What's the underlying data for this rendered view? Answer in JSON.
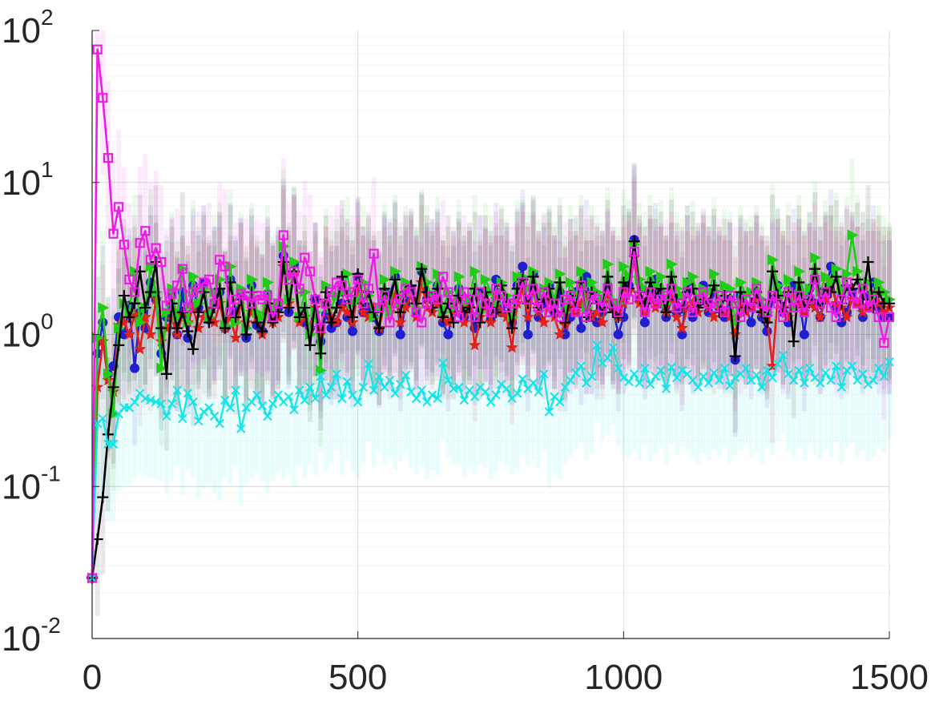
{
  "chart_data": {
    "type": "line",
    "title": "",
    "xlabel": "",
    "ylabel": "",
    "xlim": [
      0,
      1500
    ],
    "ylim": [
      0.01,
      100
    ],
    "y_scale": "log",
    "grid": true,
    "legend": "none",
    "x_ticks": [
      0,
      500,
      1000,
      1500
    ],
    "x_tick_labels": [
      "0",
      "500",
      "1000",
      "1500"
    ],
    "y_ticks": [
      0.01,
      0.1,
      1,
      10,
      100
    ],
    "y_tick_labels": [
      {
        "base": "10",
        "exp": "-2"
      },
      {
        "base": "10",
        "exp": "-1"
      },
      {
        "base": "10",
        "exp": "0"
      },
      {
        "base": "10",
        "exp": "1"
      },
      {
        "base": "10",
        "exp": "2"
      }
    ],
    "x": [
      0,
      10,
      20,
      30,
      40,
      50,
      60,
      70,
      80,
      90,
      100,
      110,
      120,
      130,
      140,
      150,
      160,
      170,
      180,
      190,
      200,
      210,
      220,
      230,
      240,
      250,
      260,
      270,
      280,
      290,
      300,
      310,
      320,
      330,
      340,
      350,
      360,
      370,
      380,
      390,
      400,
      410,
      420,
      430,
      440,
      450,
      460,
      470,
      480,
      490,
      500,
      510,
      520,
      530,
      540,
      550,
      560,
      570,
      580,
      590,
      600,
      610,
      620,
      630,
      640,
      650,
      660,
      670,
      680,
      690,
      700,
      710,
      720,
      730,
      740,
      750,
      760,
      770,
      780,
      790,
      800,
      810,
      820,
      830,
      840,
      850,
      860,
      870,
      880,
      890,
      900,
      910,
      920,
      930,
      940,
      950,
      960,
      970,
      980,
      990,
      1000,
      1010,
      1020,
      1030,
      1040,
      1050,
      1060,
      1070,
      1080,
      1090,
      1100,
      1110,
      1120,
      1130,
      1140,
      1150,
      1160,
      1170,
      1180,
      1190,
      1200,
      1210,
      1220,
      1230,
      1240,
      1250,
      1260,
      1270,
      1280,
      1290,
      1300,
      1310,
      1320,
      1330,
      1340,
      1350,
      1360,
      1370,
      1380,
      1390,
      1400,
      1410,
      1420,
      1430,
      1440,
      1450,
      1460,
      1470,
      1480,
      1490,
      1500
    ],
    "series": [
      {
        "color": "#1f1fcf",
        "marker": "circle",
        "values": [
          0.025,
          0.75,
          1.2,
          0.55,
          0.62,
          1.3,
          1.0,
          1.55,
          0.6,
          1.4,
          1.1,
          2.2,
          1.7,
          0.75,
          1.3,
          1.8,
          1.0,
          1.9,
          0.95,
          2.1,
          1.5,
          2.2,
          1.25,
          1.6,
          1.9,
          1.1,
          2.3,
          1.4,
          1.8,
          0.95,
          2.1,
          1.15,
          1.05,
          1.85,
          1.25,
          1.5,
          3.3,
          1.4,
          2.9,
          1.3,
          1.2,
          1.1,
          1.7,
          0.9,
          1.35,
          1.1,
          1.2,
          1.6,
          1.3,
          1.05,
          2.4,
          1.4,
          1.5,
          1.3,
          1.05,
          1.9,
          1.8,
          2.4,
          1.0,
          1.6,
          2.0,
          1.4,
          2.6,
          1.7,
          1.8,
          2.1,
          1.2,
          1.0,
          1.5,
          2.0,
          1.3,
          1.6,
          1.1,
          1.9,
          1.55,
          1.25,
          2.3,
          1.4,
          1.6,
          1.2,
          2.1,
          2.8,
          1.0,
          2.5,
          1.3,
          1.6,
          2.1,
          1.4,
          1.9,
          1.0,
          1.3,
          1.9,
          1.1,
          2.4,
          1.3,
          1.2,
          1.4,
          2.1,
          1.5,
          1.0,
          1.3,
          2.1,
          4.2,
          1.7,
          1.2,
          1.8,
          2.3,
          1.6,
          1.3,
          1.7,
          1.4,
          1.0,
          2.2,
          1.3,
          1.6,
          2.1,
          1.4,
          1.9,
          1.5,
          1.3,
          1.7,
          0.68,
          1.8,
          1.5,
          1.2,
          1.9,
          1.3,
          1.05,
          1.7,
          2.1,
          1.4,
          1.2,
          2.1,
          1.8,
          1.0,
          2.0,
          1.6,
          1.3,
          1.9,
          2.8,
          1.5,
          1.2,
          1.4,
          1.9,
          1.6,
          1.3,
          1.8,
          2.2,
          1.5,
          1.3,
          1.3
        ]
      },
      {
        "color": "#e0211c",
        "marker": "star",
        "values": [
          0.025,
          0.45,
          0.9,
          0.5,
          0.42,
          1.15,
          1.2,
          1.0,
          1.35,
          0.8,
          1.3,
          1.0,
          1.7,
          0.9,
          1.1,
          1.25,
          1.0,
          1.35,
          1.2,
          1.5,
          1.1,
          1.3,
          1.4,
          1.2,
          1.6,
          1.1,
          1.3,
          0.95,
          1.7,
          1.2,
          1.4,
          1.3,
          1.0,
          1.5,
          1.2,
          1.3,
          2.8,
          1.6,
          2.5,
          1.2,
          1.3,
          1.1,
          1.5,
          1.0,
          1.6,
          1.3,
          1.2,
          1.5,
          1.4,
          1.2,
          1.9,
          1.4,
          1.3,
          1.5,
          1.1,
          1.6,
          1.4,
          1.8,
          1.2,
          1.5,
          1.8,
          1.3,
          2.2,
          1.5,
          1.4,
          1.6,
          1.3,
          1.2,
          1.4,
          1.7,
          1.2,
          1.5,
          0.85,
          1.3,
          1.55,
          1.2,
          1.7,
          1.4,
          1.3,
          0.82,
          1.6,
          2.0,
          1.3,
          1.9,
          1.4,
          1.2,
          1.7,
          1.3,
          1.0,
          1.15,
          1.5,
          1.4,
          1.6,
          1.8,
          1.3,
          1.4,
          1.2,
          1.7,
          1.5,
          1.3,
          1.6,
          1.9,
          3.2,
          1.6,
          1.4,
          1.8,
          1.5,
          1.6,
          1.4,
          1.7,
          1.3,
          1.1,
          1.5,
          1.6,
          1.4,
          1.9,
          1.5,
          1.3,
          1.6,
          1.4,
          1.3,
          1.0,
          1.6,
          1.4,
          1.5,
          1.7,
          1.4,
          1.3,
          0.62,
          1.8,
          1.5,
          1.3,
          1.7,
          1.6,
          1.4,
          1.6,
          1.5,
          1.3,
          1.7,
          2.2,
          1.6,
          1.5,
          1.3,
          1.7,
          1.6,
          1.4,
          1.5,
          1.8,
          1.6,
          1.4,
          1.5
        ]
      },
      {
        "color": "#1fcc16",
        "marker": "triangle-right",
        "values": [
          0.025,
          0.95,
          1.5,
          0.55,
          0.3,
          1.1,
          1.6,
          1.4,
          2.6,
          1.2,
          1.5,
          2.8,
          1.9,
          0.6,
          1.4,
          2.0,
          1.3,
          2.7,
          1.2,
          2.4,
          1.6,
          2.0,
          1.3,
          1.9,
          2.3,
          1.15,
          2.8,
          1.2,
          2.0,
          1.1,
          2.3,
          1.4,
          1.3,
          2.2,
          1.4,
          1.6,
          3.8,
          1.7,
          3.0,
          1.3,
          1.9,
          1.0,
          1.4,
          0.58,
          2.1,
          1.5,
          1.8,
          1.9,
          2.5,
          1.6,
          1.7,
          2.2,
          1.8,
          1.3,
          1.5,
          2.3,
          1.4,
          2.6,
          1.6,
          2.2,
          1.9,
          1.5,
          2.8,
          2.2,
          1.7,
          2.5,
          1.4,
          1.9,
          1.5,
          2.4,
          1.6,
          1.7,
          2.6,
          1.4,
          2.3,
          1.9,
          1.6,
          2.2,
          1.8,
          1.3,
          2.4,
          2.4,
          2.0,
          2.6,
          1.8,
          2.0,
          2.2,
          1.7,
          2.5,
          1.4,
          2.2,
          1.8,
          2.6,
          1.5,
          2.2,
          1.9,
          1.7,
          2.9,
          1.6,
          1.6,
          2.8,
          2.4,
          3.9,
          2.3,
          2.0,
          2.6,
          2.1,
          2.4,
          1.6,
          2.9,
          2.0,
          1.8,
          2.2,
          2.4,
          1.7,
          2.0,
          1.9,
          2.5,
          1.6,
          2.1,
          2.0,
          1.2,
          2.2,
          1.8,
          1.9,
          2.2,
          1.7,
          1.4,
          3.1,
          2.1,
          1.8,
          2.3,
          1.5,
          2.6,
          1.8,
          2.0,
          3.2,
          1.9,
          2.4,
          2.2,
          2.7,
          1.9,
          2.5,
          4.5,
          2.6,
          2.0,
          2.2,
          1.8,
          2.2,
          1.9,
          1.7
        ]
      },
      {
        "color": "#000000",
        "marker": "plus",
        "values": [
          0.025,
          0.045,
          0.085,
          0.22,
          0.45,
          0.85,
          1.8,
          1.3,
          1.6,
          2.6,
          1.5,
          1.9,
          3.0,
          1.1,
          0.55,
          1.6,
          1.1,
          1.4,
          1.05,
          0.8,
          1.4,
          1.9,
          1.2,
          1.5,
          2.0,
          1.1,
          2.2,
          1.3,
          1.7,
          1.0,
          1.9,
          1.2,
          1.05,
          1.6,
          1.2,
          1.4,
          3.0,
          1.5,
          2.6,
          1.3,
          1.5,
          0.85,
          1.7,
          0.75,
          1.9,
          1.2,
          1.5,
          2.4,
          1.8,
          1.3,
          2.5,
          1.6,
          1.9,
          1.4,
          1.1,
          2.0,
          1.7,
          2.3,
          1.4,
          1.9,
          2.1,
          1.6,
          2.7,
          1.9,
          1.5,
          2.0,
          1.3,
          1.6,
          1.2,
          1.8,
          1.4,
          1.5,
          2.0,
          1.2,
          1.9,
          1.5,
          1.4,
          2.1,
          1.7,
          1.1,
          2.0,
          2.3,
          1.6,
          2.4,
          1.5,
          1.7,
          2.0,
          1.4,
          2.2,
          1.2,
          1.8,
          1.5,
          2.2,
          1.3,
          1.9,
          1.6,
          1.5,
          2.4,
          1.4,
          1.3,
          2.2,
          2.0,
          4.1,
          1.9,
          1.6,
          2.2,
          1.8,
          2.0,
          1.4,
          2.4,
          1.7,
          1.5,
          1.9,
          2.0,
          1.5,
          1.7,
          1.6,
          2.1,
          1.4,
          1.8,
          1.7,
          0.72,
          1.9,
          1.5,
          1.6,
          1.9,
          1.4,
          1.2,
          2.6,
          1.8,
          1.5,
          1.9,
          0.9,
          2.2,
          1.5,
          1.7,
          2.7,
          1.6,
          2.0,
          1.9,
          2.4,
          1.6,
          2.1,
          2.0,
          2.3,
          1.7,
          3.0,
          1.5,
          1.9,
          1.6,
          1.6
        ]
      },
      {
        "color": "#11e5e8",
        "marker": "x",
        "values": [
          0.025,
          0.26,
          0.28,
          0.19,
          0.19,
          0.3,
          0.33,
          0.33,
          0.36,
          0.41,
          0.38,
          0.37,
          0.36,
          0.35,
          0.29,
          0.35,
          0.43,
          0.28,
          0.41,
          0.36,
          0.27,
          0.31,
          0.33,
          0.29,
          0.26,
          0.37,
          0.33,
          0.43,
          0.24,
          0.33,
          0.36,
          0.4,
          0.34,
          0.29,
          0.35,
          0.4,
          0.36,
          0.39,
          0.32,
          0.43,
          0.37,
          0.45,
          0.38,
          0.53,
          0.4,
          0.45,
          0.55,
          0.38,
          0.49,
          0.4,
          0.36,
          0.45,
          0.64,
          0.43,
          0.53,
          0.45,
          0.5,
          0.41,
          0.47,
          0.54,
          0.42,
          0.38,
          0.43,
          0.36,
          0.4,
          0.38,
          0.65,
          0.5,
          0.44,
          0.45,
          0.37,
          0.43,
          0.39,
          0.45,
          0.42,
          0.36,
          0.4,
          0.47,
          0.44,
          0.38,
          0.41,
          0.51,
          0.44,
          0.48,
          0.42,
          0.55,
          0.31,
          0.39,
          0.36,
          0.45,
          0.5,
          0.56,
          0.62,
          0.48,
          0.53,
          0.85,
          0.65,
          0.7,
          0.82,
          0.6,
          0.52,
          0.49,
          0.55,
          0.48,
          0.6,
          0.47,
          0.53,
          0.58,
          0.44,
          0.61,
          0.52,
          0.58,
          0.55,
          0.5,
          0.45,
          0.53,
          0.48,
          0.56,
          0.5,
          0.6,
          0.46,
          0.52,
          0.55,
          0.6,
          0.5,
          0.54,
          0.45,
          0.58,
          0.52,
          0.64,
          0.73,
          0.55,
          0.5,
          0.58,
          0.48,
          0.6,
          0.52,
          0.48,
          0.56,
          0.5,
          0.62,
          0.45,
          0.58,
          0.62,
          0.5,
          0.55,
          0.47,
          0.5,
          0.6,
          0.53,
          0.66
        ]
      },
      {
        "color": "#ee1ae6",
        "marker": "square",
        "values": [
          0.025,
          75.0,
          36.0,
          14.5,
          4.6,
          6.9,
          3.9,
          2.3,
          1.9,
          4.0,
          4.8,
          3.1,
          3.7,
          3.0,
          1.55,
          1.85,
          2.1,
          2.7,
          1.5,
          1.9,
          2.0,
          2.2,
          2.3,
          1.6,
          3.1,
          2.8,
          1.4,
          1.7,
          1.85,
          1.8,
          1.6,
          1.8,
          1.7,
          1.8,
          1.3,
          1.6,
          4.5,
          2.3,
          2.6,
          2.0,
          3.2,
          2.6,
          1.7,
          1.1,
          1.6,
          1.9,
          2.2,
          2.1,
          1.7,
          1.9,
          2.3,
          1.6,
          2.0,
          3.4,
          1.5,
          1.8,
          1.2,
          1.6,
          1.7,
          2.0,
          1.9,
          1.4,
          1.2,
          1.6,
          1.8,
          1.7,
          2.4,
          1.9,
          1.6,
          1.3,
          1.9,
          1.7,
          1.3,
          1.9,
          1.6,
          1.4,
          2.0,
          1.8,
          1.5,
          1.6,
          1.7,
          2.2,
          1.7,
          2.0,
          1.5,
          1.9,
          1.4,
          1.6,
          1.3,
          1.7,
          1.8,
          1.4,
          2.1,
          1.3,
          1.8,
          1.7,
          1.5,
          2.0,
          1.6,
          1.4,
          1.9,
          1.7,
          3.5,
          1.8,
          1.4,
          1.9,
          1.6,
          1.7,
          1.8,
          2.0,
          1.5,
          1.6,
          1.9,
          1.4,
          1.7,
          1.9,
          1.6,
          1.5,
          1.8,
          1.4,
          1.8,
          1.6,
          1.3,
          1.7,
          1.5,
          2.0,
          1.6,
          1.4,
          1.8,
          1.6,
          1.3,
          1.9,
          1.5,
          1.8,
          1.4,
          1.7,
          2.3,
          1.6,
          1.9,
          1.5,
          1.3,
          1.7,
          2.2,
          1.8,
          1.6,
          2.0,
          1.5,
          1.7,
          1.3,
          0.88,
          1.3
        ]
      }
    ]
  }
}
